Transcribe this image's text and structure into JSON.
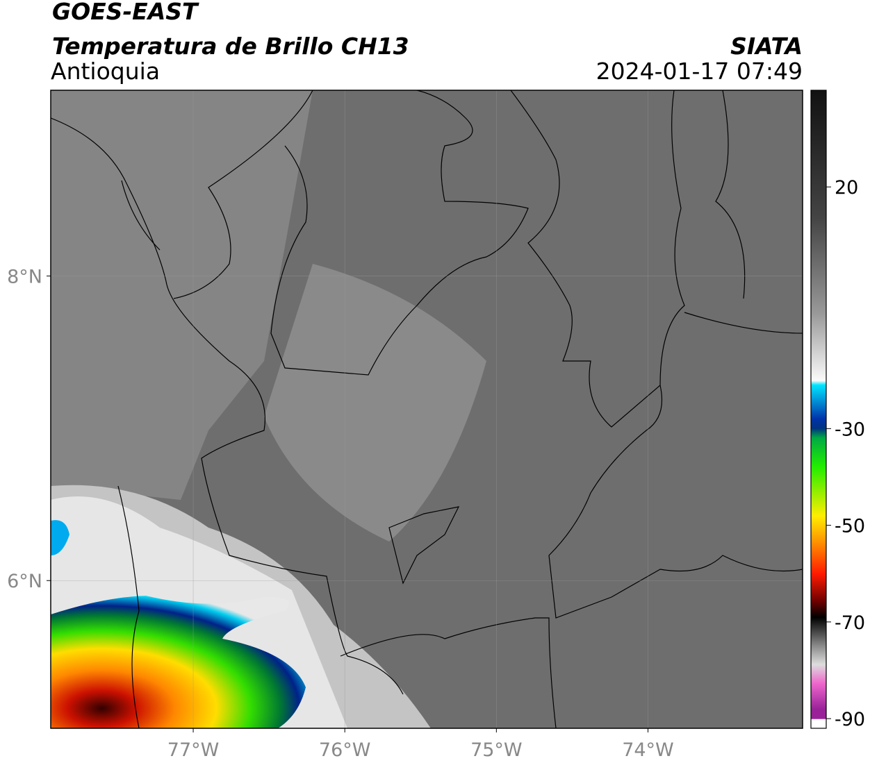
{
  "header": {
    "title": "GOES-EAST",
    "subtitle": "Temperatura de Brillo CH13",
    "region": "Antioquia",
    "source": "SIATA",
    "datetime": "2024-01-17 07:49"
  },
  "map": {
    "lonlim": [
      -77.94,
      -72.98
    ],
    "latlim": [
      5.03,
      9.22
    ],
    "lon_ticks": [
      {
        "value": -77,
        "label": "77°W"
      },
      {
        "value": -76,
        "label": "76°W"
      },
      {
        "value": -75,
        "label": "75°W"
      },
      {
        "value": -74,
        "label": "74°W"
      }
    ],
    "lat_ticks": [
      {
        "value": 8,
        "label": "8°N"
      },
      {
        "value": 6,
        "label": "6°N"
      }
    ]
  },
  "colorbar": {
    "lim": [
      -92,
      40
    ],
    "ticks": [
      20,
      -30,
      -50,
      -70,
      -90
    ]
  }
}
